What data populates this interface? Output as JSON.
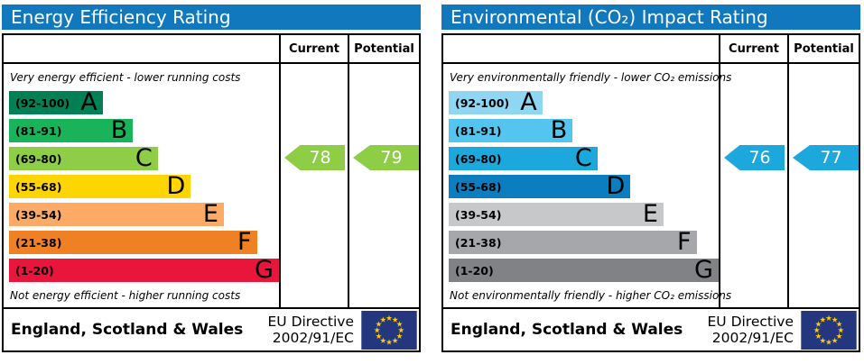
{
  "colors": {
    "header_bg": "#1178be",
    "border": "#000000",
    "flag_bg": "#24367d",
    "flag_star": "#ffcc00"
  },
  "panels": [
    {
      "title": "Energy Efficiency Rating",
      "columns": {
        "current": "Current",
        "potential": "Potential"
      },
      "caption_top": "Very energy efficient - lower running costs",
      "caption_bottom": "Not energy efficient - higher running costs",
      "bands": [
        {
          "letter": "A",
          "range": "(92-100)",
          "color": "#008054",
          "width_pct": 34
        },
        {
          "letter": "B",
          "range": "(81-91)",
          "color": "#19b459",
          "width_pct": 45
        },
        {
          "letter": "C",
          "range": "(69-80)",
          "color": "#8dce46",
          "width_pct": 54
        },
        {
          "letter": "D",
          "range": "(55-68)",
          "color": "#ffd500",
          "width_pct": 66
        },
        {
          "letter": "E",
          "range": "(39-54)",
          "color": "#fcaa65",
          "width_pct": 78
        },
        {
          "letter": "F",
          "range": "(21-38)",
          "color": "#ef8023",
          "width_pct": 90
        },
        {
          "letter": "G",
          "range": "(1-20)",
          "color": "#e9153b",
          "width_pct": 98
        }
      ],
      "current": {
        "value": "78",
        "band": "C",
        "color": "#8dce46"
      },
      "potential": {
        "value": "79",
        "band": "C",
        "color": "#8dce46"
      },
      "footer": {
        "region": "England, Scotland & Wales",
        "directive_line1": "EU Directive",
        "directive_line2": "2002/91/EC"
      }
    },
    {
      "title": "Environmental (CO₂) Impact Rating",
      "columns": {
        "current": "Current",
        "potential": "Potential"
      },
      "caption_top": "Very environmentally friendly - lower CO₂ emissions",
      "caption_bottom": "Not environmentally friendly - higher CO₂ emissions",
      "bands": [
        {
          "letter": "A",
          "range": "(92-100)",
          "color": "#8fd6f2",
          "width_pct": 34
        },
        {
          "letter": "B",
          "range": "(81-91)",
          "color": "#53c5ee",
          "width_pct": 45
        },
        {
          "letter": "C",
          "range": "(69-80)",
          "color": "#1ca8dd",
          "width_pct": 54
        },
        {
          "letter": "D",
          "range": "(55-68)",
          "color": "#0c7ec0",
          "width_pct": 66
        },
        {
          "letter": "E",
          "range": "(39-54)",
          "color": "#c6c8ca",
          "width_pct": 78
        },
        {
          "letter": "F",
          "range": "(21-38)",
          "color": "#a5a7aa",
          "width_pct": 90
        },
        {
          "letter": "G",
          "range": "(1-20)",
          "color": "#808285",
          "width_pct": 98
        }
      ],
      "current": {
        "value": "76",
        "band": "C",
        "color": "#1ca8dd"
      },
      "potential": {
        "value": "77",
        "band": "C",
        "color": "#1ca8dd"
      },
      "footer": {
        "region": "England, Scotland & Wales",
        "directive_line1": "EU Directive",
        "directive_line2": "2002/91/EC"
      }
    }
  ],
  "chart_data": [
    {
      "type": "bar",
      "title": "Energy Efficiency Rating",
      "categories": [
        "A (92-100)",
        "B (81-91)",
        "C (69-80)",
        "D (55-68)",
        "E (39-54)",
        "F (21-38)",
        "G (1-20)"
      ],
      "values": [
        34,
        45,
        54,
        66,
        78,
        90,
        98
      ],
      "values_note": "relative bar lengths as % of band column width",
      "current": 78,
      "current_band": "C",
      "potential": 79,
      "potential_band": "C",
      "top_note": "Very energy efficient - lower running costs",
      "bottom_note": "Not energy efficient - higher running costs",
      "footer": "England, Scotland & Wales — EU Directive 2002/91/EC"
    },
    {
      "type": "bar",
      "title": "Environmental (CO₂) Impact Rating",
      "categories": [
        "A (92-100)",
        "B (81-91)",
        "C (69-80)",
        "D (55-68)",
        "E (39-54)",
        "F (21-38)",
        "G (1-20)"
      ],
      "values": [
        34,
        45,
        54,
        66,
        78,
        90,
        98
      ],
      "values_note": "relative bar lengths as % of band column width",
      "current": 76,
      "current_band": "C",
      "potential": 77,
      "potential_band": "C",
      "top_note": "Very environmentally friendly - lower CO₂ emissions",
      "bottom_note": "Not environmentally friendly - higher CO₂ emissions",
      "footer": "England, Scotland & Wales — EU Directive 2002/91/EC"
    }
  ]
}
